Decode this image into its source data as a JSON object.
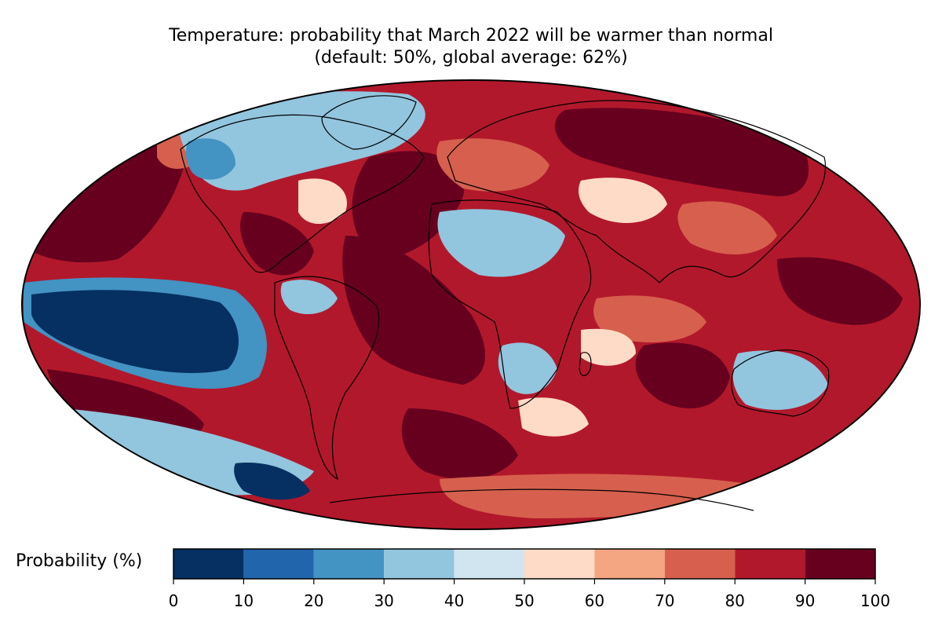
{
  "title": {
    "line1": "Temperature: probability that March 2022 will be warmer than normal",
    "line2": "(default: 50%, global average: 62%)"
  },
  "colorbar": {
    "label": "Probability (%)",
    "ticks": [
      "0",
      "10",
      "20",
      "30",
      "40",
      "50",
      "60",
      "70",
      "80",
      "90",
      "100"
    ],
    "bins": [
      {
        "from": 0,
        "to": 10,
        "color": "#053061"
      },
      {
        "from": 10,
        "to": 20,
        "color": "#2166ac"
      },
      {
        "from": 20,
        "to": 30,
        "color": "#4393c3"
      },
      {
        "from": 30,
        "to": 40,
        "color": "#92c5de"
      },
      {
        "from": 40,
        "to": 50,
        "color": "#d1e5f0"
      },
      {
        "from": 50,
        "to": 60,
        "color": "#fddbc7"
      },
      {
        "from": 60,
        "to": 70,
        "color": "#f4a582"
      },
      {
        "from": 70,
        "to": 80,
        "color": "#d6604d"
      },
      {
        "from": 80,
        "to": 90,
        "color": "#b2182b"
      },
      {
        "from": 90,
        "to": 100,
        "color": "#67001f"
      }
    ]
  },
  "map": {
    "projection": "Mollweide",
    "background_color": "#b2182b",
    "coastline_color": "#000000",
    "border_color": "#888888"
  }
}
